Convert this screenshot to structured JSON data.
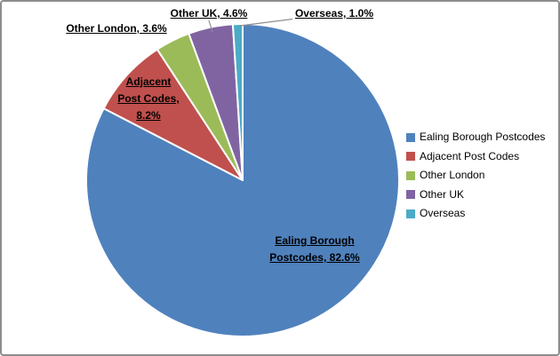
{
  "chart_data": {
    "type": "pie",
    "title": "",
    "categories": [
      "Ealing Borough Postcodes",
      "Adjacent Post Codes",
      "Other London",
      "Other UK",
      "Overseas"
    ],
    "values": [
      82.6,
      8.2,
      3.6,
      4.6,
      1.0
    ],
    "unit": "%",
    "colors": [
      "#4F81BD",
      "#C0504D",
      "#9BBB59",
      "#8064A2",
      "#4BACC6"
    ],
    "slice_border_color": "#FFFFFF",
    "leader_line_color": "#8E8E8E",
    "start_angle_deg": 0,
    "direction": "clockwise",
    "labels": [
      "Ealing Borough Postcodes, 82.6%",
      "Adjacent Post Codes, 8.2%",
      "Other London, 3.6%",
      "Other UK, 4.6%",
      "Overseas, 1.0%"
    ],
    "legend": {
      "position": "right",
      "entries": [
        "Ealing Borough Postcodes",
        "Adjacent Post Codes",
        "Other London",
        "Other UK",
        "Overseas"
      ]
    }
  }
}
